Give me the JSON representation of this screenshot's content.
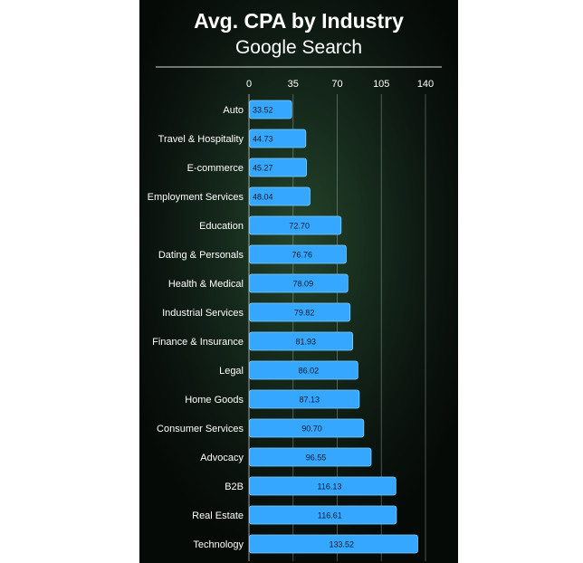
{
  "chart_data": {
    "type": "bar",
    "orientation": "horizontal",
    "title": "Avg. CPA by Industry",
    "subtitle": "Google Search",
    "categories": [
      "Auto",
      "Travel & Hospitality",
      "E-commerce",
      "Employment Services",
      "Education",
      "Dating & Personals",
      "Health & Medical",
      "Industrial Services",
      "Finance & Insurance",
      "Legal",
      "Home Goods",
      "Consumer Services",
      "Advocacy",
      "B2B",
      "Real Estate",
      "Technology"
    ],
    "values": [
      33.52,
      44.73,
      45.27,
      48.04,
      72.7,
      76.76,
      78.09,
      79.82,
      81.93,
      86.02,
      87.13,
      90.7,
      96.55,
      116.13,
      116.61,
      133.52
    ],
    "value_labels": [
      "33.52",
      "44.73",
      "45.27",
      "48.04",
      "72.70",
      "76.76",
      "78.09",
      "79.82",
      "81.93",
      "86.02",
      "87.13",
      "90.70",
      "96.55",
      "116.13",
      "116.61",
      "133.52"
    ],
    "xticks": [
      "0",
      "35",
      "70",
      "105",
      "140"
    ],
    "xlim": [
      0,
      140
    ],
    "xlabel": "",
    "ylabel": "",
    "grid": true,
    "colors": {
      "bar": "#35a7ff",
      "bar_edge": "#7fd0ff",
      "value_text": "#0c1a2c",
      "text": "#ffffff",
      "gridline": "#ffffff",
      "background_center": "#24442a",
      "background_edge": "#060a07"
    }
  }
}
